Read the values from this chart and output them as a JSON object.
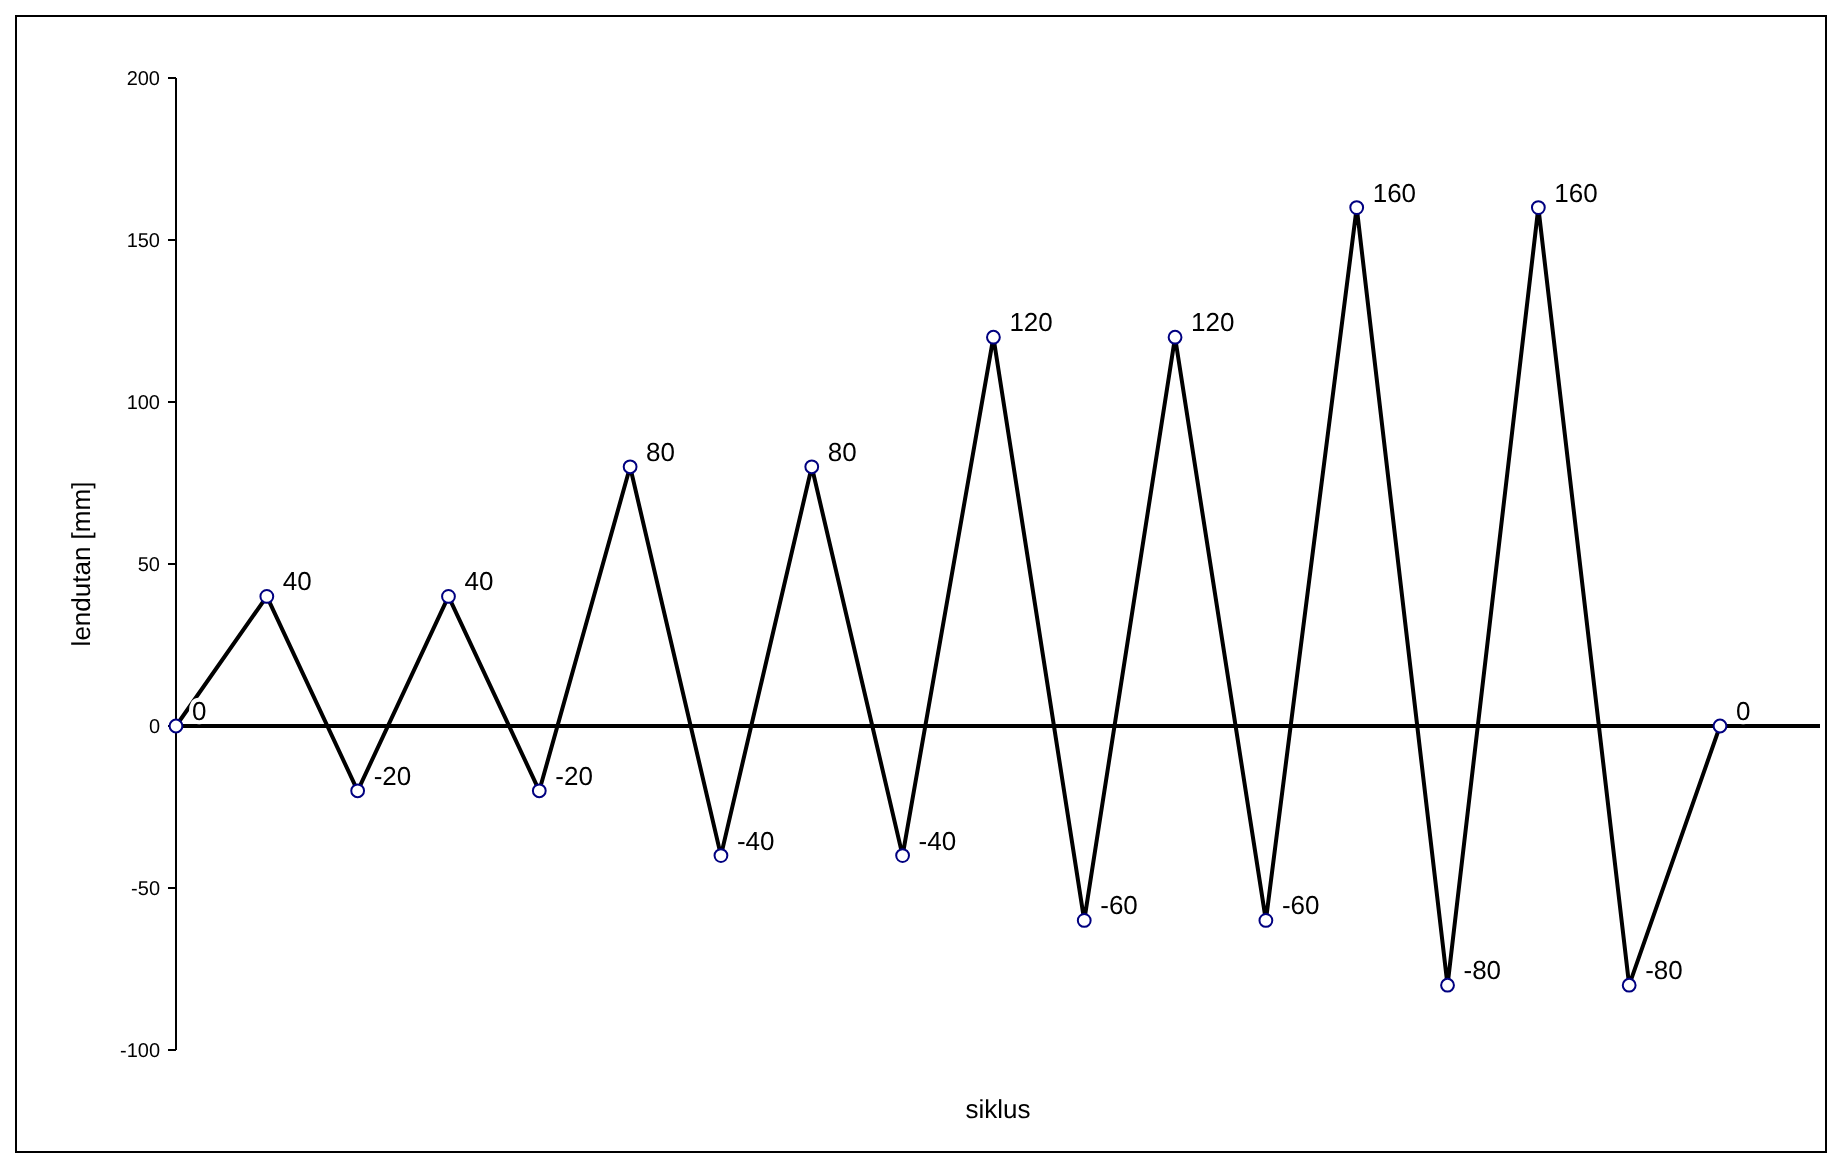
{
  "chart_data": {
    "type": "line",
    "xlabel": "siklus",
    "ylabel": "lendutan [mm]",
    "categories": [
      null,
      null,
      null,
      null,
      null,
      null,
      null,
      null,
      null,
      null,
      null,
      null,
      null,
      null,
      null,
      null,
      null,
      null
    ],
    "series": [
      {
        "color": "#000000",
        "values": [
          0,
          40,
          -20,
          40,
          -20,
          80,
          -40,
          80,
          -40,
          120,
          -60,
          120,
          -60,
          160,
          -80,
          160,
          -80,
          0
        ]
      }
    ],
    "ylim": [
      -100,
      200
    ],
    "yticks": [
      -100,
      -50,
      0,
      50,
      100,
      150,
      200
    ],
    "marker": "circle",
    "line_style": "solid",
    "data_labels": true
  }
}
